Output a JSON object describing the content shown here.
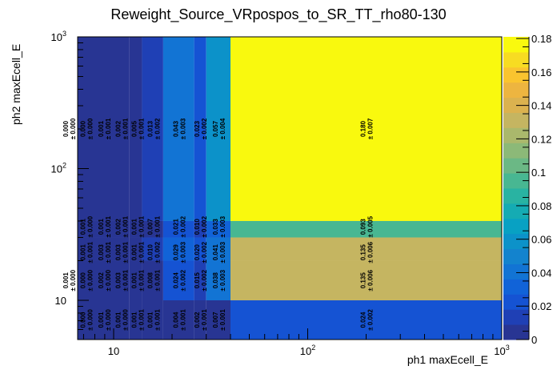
{
  "chart_data": {
    "type": "heatmap",
    "title": "Reweight_Source_VRpospos_to_SR_TT_rho80-130",
    "xlabel": "ph1 maxEcell_E",
    "ylabel": "ph2 maxEcell_E",
    "xscale": "log",
    "yscale": "log",
    "xlim": [
      5.4,
      1000
    ],
    "ylim": [
      5,
      1000
    ],
    "zlim": [
      0,
      0.181
    ],
    "z_ticks": [
      "0",
      "0.02",
      "0.04",
      "0.06",
      "0.08",
      "0.1",
      "0.12",
      "0.14",
      "0.16",
      "0.18"
    ],
    "x_ticks": [
      {
        "base": "10",
        "exp": ""
      },
      {
        "base": "10",
        "exp": "2"
      },
      {
        "base": "10",
        "exp": "3"
      }
    ],
    "y_ticks": [
      {
        "base": "10",
        "exp": ""
      },
      {
        "base": "10",
        "exp": "2"
      },
      {
        "base": "10",
        "exp": "3"
      }
    ],
    "palette": [
      "#283593",
      "#1f40b5",
      "#1553d3",
      "#1163d8",
      "#1274d4",
      "#1383ce",
      "#0c92c9",
      "#08a1c3",
      "#15abb3",
      "#29b3a2",
      "#48b792",
      "#6bb885",
      "#8cb978",
      "#aab86c",
      "#c5b561",
      "#dbb24f",
      "#edb540",
      "#fac42f",
      "#f7dc22",
      "#f9f90e"
    ],
    "rows": [
      {
        "y": [
          40,
          1000
        ],
        "cells": [
          {
            "x": [
              5.4,
              6.5
            ],
            "v": "0.000",
            "e": "0.000"
          },
          {
            "x": [
              6.5,
              8
            ],
            "v": "0.000",
            "e": "0.000"
          },
          {
            "x": [
              8,
              10
            ],
            "v": "0.001",
            "e": "0.001"
          },
          {
            "x": [
              10,
              12
            ],
            "v": "0.002",
            "e": "0.001"
          },
          {
            "x": [
              12,
              14
            ],
            "v": "0.005",
            "e": "0.001"
          },
          {
            "x": [
              14,
              18
            ],
            "v": "0.013",
            "e": "0.002"
          },
          {
            "x": [
              18,
              26
            ],
            "v": "0.043",
            "e": "0.003"
          },
          {
            "x": [
              26,
              30
            ],
            "v": "0.023",
            "e": "0.002"
          },
          {
            "x": [
              30,
              40
            ],
            "v": "0.057",
            "e": "0.004"
          },
          {
            "x": [
              40,
              1000
            ],
            "v": "0.180",
            "e": "0.007"
          }
        ]
      },
      {
        "y": [
          30,
          40
        ],
        "cells": [
          {
            "x": [
              6.5,
              8
            ],
            "v": "0.001",
            "e": "0.000"
          },
          {
            "x": [
              8,
              10
            ],
            "v": "0.001",
            "e": "0.001"
          },
          {
            "x": [
              10,
              12
            ],
            "v": "0.002",
            "e": "0.001"
          },
          {
            "x": [
              12,
              14
            ],
            "v": "0.001",
            "e": "0.001"
          },
          {
            "x": [
              14,
              18
            ],
            "v": "0.007",
            "e": "0.001"
          },
          {
            "x": [
              18,
              26
            ],
            "v": "0.021",
            "e": "0.002"
          },
          {
            "x": [
              26,
              30
            ],
            "v": "0.010",
            "e": "0.002"
          },
          {
            "x": [
              30,
              40
            ],
            "v": "0.033",
            "e": "0.003"
          },
          {
            "x": [
              40,
              1000
            ],
            "v": "0.093",
            "e": "0.005"
          }
        ]
      },
      {
        "y": [
          20,
          30
        ],
        "cells": [
          {
            "x": [
              6.5,
              8
            ],
            "v": "0.001",
            "e": "0.001"
          },
          {
            "x": [
              8,
              10
            ],
            "v": "0.003",
            "e": "0.001"
          },
          {
            "x": [
              10,
              12
            ],
            "v": "0.003",
            "e": "0.001"
          },
          {
            "x": [
              12,
              14
            ],
            "v": "0.001",
            "e": "0.001"
          },
          {
            "x": [
              14,
              18
            ],
            "v": "0.010",
            "e": "0.002"
          },
          {
            "x": [
              18,
              26
            ],
            "v": "0.029",
            "e": "0.003"
          },
          {
            "x": [
              26,
              30
            ],
            "v": "0.020",
            "e": "0.002"
          },
          {
            "x": [
              30,
              40
            ],
            "v": "0.041",
            "e": "0.003"
          },
          {
            "x": [
              40,
              1000
            ],
            "v": "0.135",
            "e": "0.006"
          }
        ]
      },
      {
        "y": [
          10,
          20
        ],
        "cells": [
          {
            "x": [
              5.4,
              6.5
            ],
            "v": "0.001",
            "e": "0.000"
          },
          {
            "x": [
              6.5,
              8
            ],
            "v": "0.000",
            "e": "0.000"
          },
          {
            "x": [
              8,
              10
            ],
            "v": "0.002",
            "e": "0.000"
          },
          {
            "x": [
              10,
              12
            ],
            "v": "0.003",
            "e": "0.001"
          },
          {
            "x": [
              12,
              14
            ],
            "v": "0.001",
            "e": "0.001"
          },
          {
            "x": [
              14,
              18
            ],
            "v": "0.008",
            "e": "0.001"
          },
          {
            "x": [
              18,
              26
            ],
            "v": "0.024",
            "e": "0.002"
          },
          {
            "x": [
              26,
              30
            ],
            "v": "0.015",
            "e": "0.002"
          },
          {
            "x": [
              30,
              40
            ],
            "v": "0.038",
            "e": "0.003"
          },
          {
            "x": [
              40,
              1000
            ],
            "v": "0.135",
            "e": "0.006"
          }
        ]
      },
      {
        "y": [
          5,
          10
        ],
        "cells": [
          {
            "x": [
              6.5,
              8
            ],
            "v": "0.000",
            "e": "0.000"
          },
          {
            "x": [
              8,
              10
            ],
            "v": "0.001",
            "e": "0.000"
          },
          {
            "x": [
              10,
              12
            ],
            "v": "0.001",
            "e": "0.000"
          },
          {
            "x": [
              12,
              14
            ],
            "v": "0.001",
            "e": "0.001"
          },
          {
            "x": [
              14,
              18
            ],
            "v": "0.001",
            "e": "0.001"
          },
          {
            "x": [
              18,
              26
            ],
            "v": "0.004",
            "e": "0.001"
          },
          {
            "x": [
              26,
              30
            ],
            "v": "0.002",
            "e": "0.001"
          },
          {
            "x": [
              30,
              40
            ],
            "v": "0.007",
            "e": "0.001"
          },
          {
            "x": [
              40,
              1000
            ],
            "v": "0.024",
            "e": "0.002"
          }
        ]
      }
    ]
  }
}
